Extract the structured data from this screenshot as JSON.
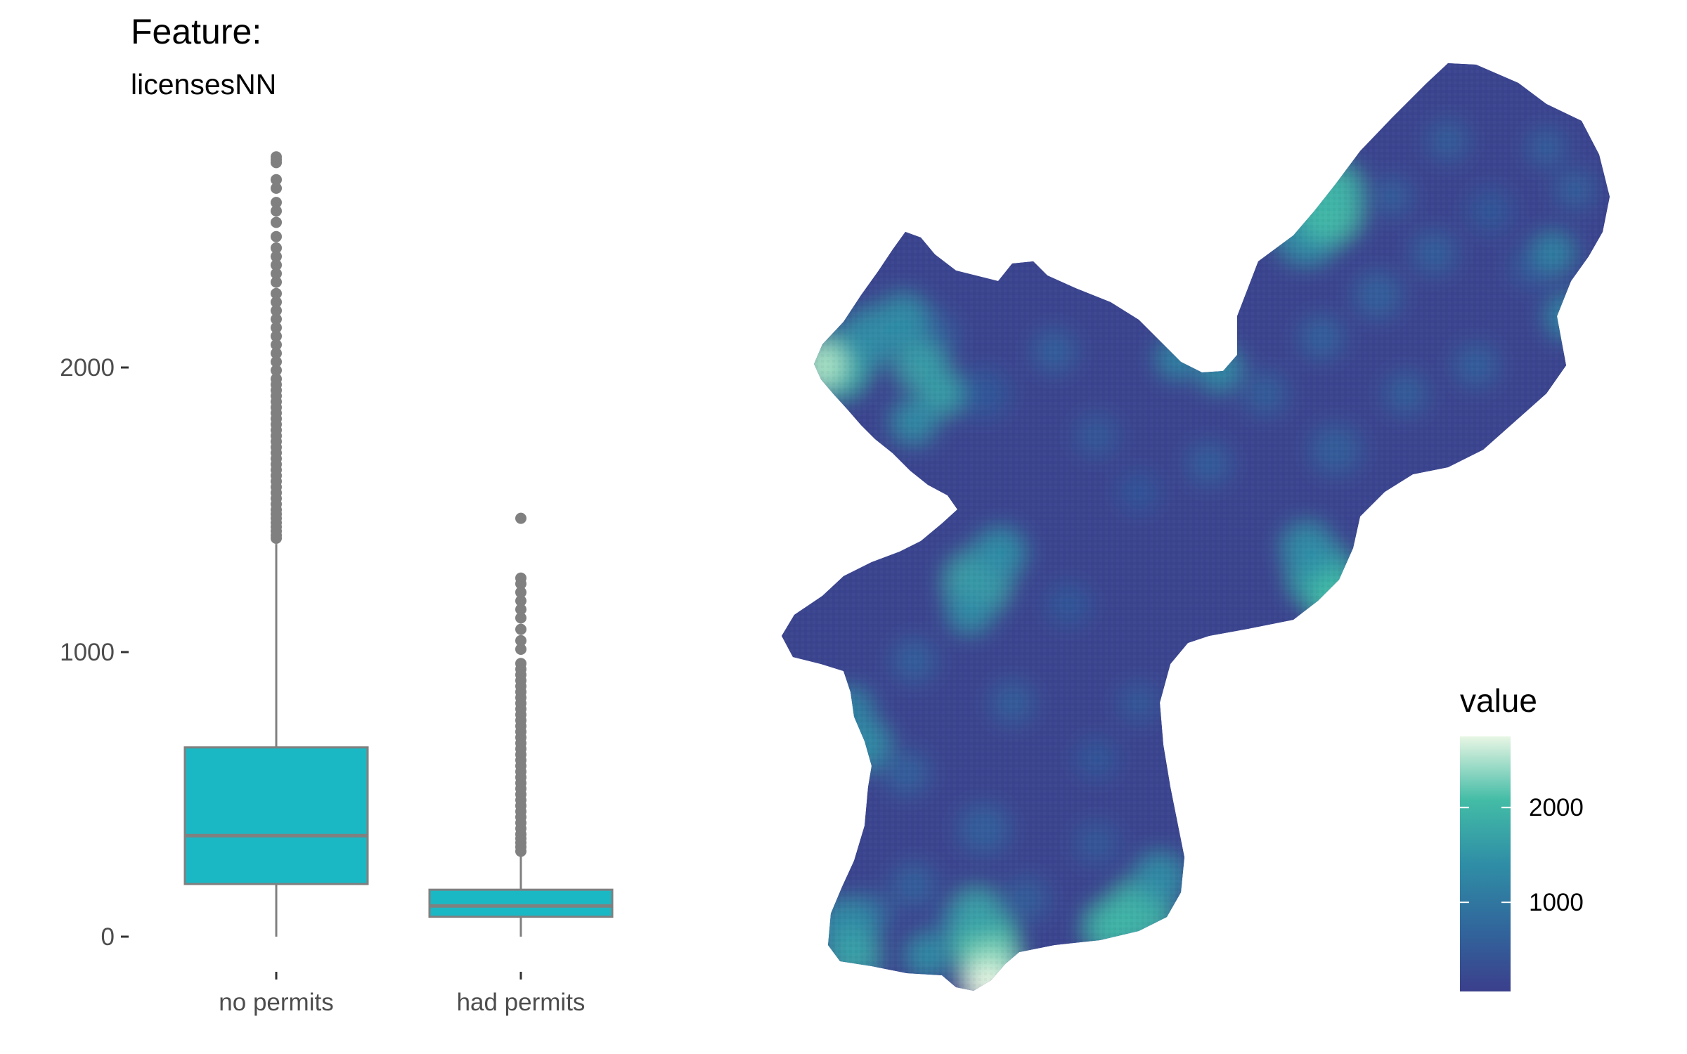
{
  "title": "Feature:",
  "subtitle": "licensesNN",
  "chart_data": [
    {
      "type": "boxplot",
      "xlabel": "",
      "ylabel": "",
      "ylim": [
        -100,
        2850
      ],
      "yticks": [
        0,
        1000,
        2000
      ],
      "categories": [
        "no permits",
        "had permits"
      ],
      "fill_color": "#1ab8c4",
      "line_color": "#808080",
      "boxes": [
        {
          "category": "no permits",
          "min": 0,
          "q1": 185,
          "median": 355,
          "q3": 665,
          "whisker_high": 1380,
          "outliers": [
            1400,
            1410,
            1425,
            1440,
            1455,
            1470,
            1485,
            1500,
            1520,
            1540,
            1560,
            1580,
            1600,
            1620,
            1640,
            1660,
            1680,
            1700,
            1720,
            1740,
            1760,
            1780,
            1800,
            1820,
            1840,
            1860,
            1880,
            1900,
            1920,
            1940,
            1960,
            1990,
            2020,
            2050,
            2080,
            2110,
            2140,
            2170,
            2200,
            2230,
            2260,
            2300,
            2330,
            2360,
            2390,
            2420,
            2460,
            2510,
            2550,
            2580,
            2630,
            2660,
            2720,
            2730,
            2740
          ]
        },
        {
          "category": "had permits",
          "min": 0,
          "q1": 70,
          "median": 108,
          "q3": 165,
          "whisker_high": 290,
          "outliers": [
            300,
            315,
            330,
            345,
            360,
            380,
            400,
            420,
            440,
            460,
            480,
            500,
            520,
            540,
            560,
            580,
            600,
            620,
            640,
            660,
            680,
            700,
            720,
            740,
            760,
            780,
            800,
            820,
            840,
            860,
            880,
            900,
            920,
            940,
            960,
            1010,
            1040,
            1080,
            1120,
            1150,
            1180,
            1210,
            1240,
            1260,
            1470
          ]
        }
      ]
    },
    {
      "type": "heatmap",
      "legend_title": "value",
      "legend_ticks": [
        1000,
        2000
      ],
      "value_range": [
        60,
        2750
      ],
      "color_stops": [
        "#3b3f8c",
        "#31679c",
        "#2f8ea6",
        "#43bca6",
        "#e8f6e4"
      ],
      "legend_position": "right-bottom"
    }
  ]
}
